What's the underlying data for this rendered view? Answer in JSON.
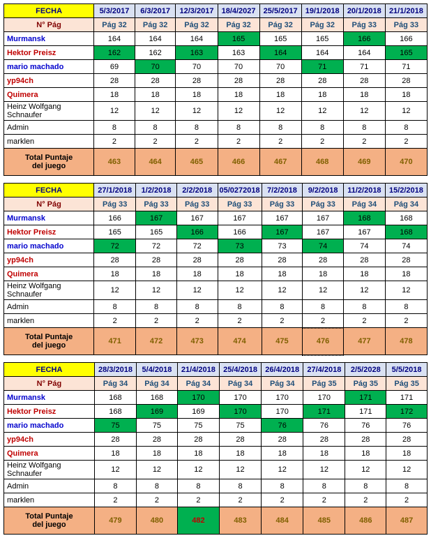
{
  "labels": {
    "fecha": "FECHA",
    "npag": "N° Pág",
    "total1": "Total Puntaje",
    "total2": "del juego"
  },
  "players": [
    {
      "name": "Murmansk",
      "cls": "p-blue"
    },
    {
      "name": "Hektor Preisz",
      "cls": "p-red"
    },
    {
      "name": "mario machado",
      "cls": "p-blue"
    },
    {
      "name": "yp94ch",
      "cls": "p-red"
    },
    {
      "name": "Quimera",
      "cls": "p-red"
    },
    {
      "name": "Heinz Wolfgang Schnaufer",
      "cls": "p-black"
    },
    {
      "name": "Admin",
      "cls": "p-black"
    },
    {
      "name": "marklen",
      "cls": "p-black"
    }
  ],
  "tables": [
    {
      "dates": [
        "5/3/2017",
        "6/3/2017",
        "12/3/2017",
        "18/4/2027",
        "25/5/2017",
        "19/1/2018",
        "20/1/2018",
        "21/1/2018"
      ],
      "pages": [
        "Pág 32",
        "Pág 32",
        "Pág 32",
        "Pág 32",
        "Pág 32",
        "Pág 32",
        "Pág 33",
        "Pág 33"
      ],
      "rows": [
        [
          {
            "v": "164"
          },
          {
            "v": "164"
          },
          {
            "v": "164"
          },
          {
            "v": "165",
            "h": 1
          },
          {
            "v": "165"
          },
          {
            "v": "165"
          },
          {
            "v": "166",
            "h": 1
          },
          {
            "v": "166"
          }
        ],
        [
          {
            "v": "162",
            "h": 1
          },
          {
            "v": "162"
          },
          {
            "v": "163",
            "h": 1
          },
          {
            "v": "163"
          },
          {
            "v": "164",
            "h": 1
          },
          {
            "v": "164"
          },
          {
            "v": "164"
          },
          {
            "v": "165",
            "h": 1
          }
        ],
        [
          {
            "v": "69"
          },
          {
            "v": "70",
            "h": 1
          },
          {
            "v": "70"
          },
          {
            "v": "70"
          },
          {
            "v": "70"
          },
          {
            "v": "71",
            "h": 1
          },
          {
            "v": "71"
          },
          {
            "v": "71"
          }
        ],
        [
          {
            "v": "28"
          },
          {
            "v": "28"
          },
          {
            "v": "28"
          },
          {
            "v": "28"
          },
          {
            "v": "28"
          },
          {
            "v": "28"
          },
          {
            "v": "28"
          },
          {
            "v": "28"
          }
        ],
        [
          {
            "v": "18"
          },
          {
            "v": "18"
          },
          {
            "v": "18"
          },
          {
            "v": "18"
          },
          {
            "v": "18"
          },
          {
            "v": "18"
          },
          {
            "v": "18"
          },
          {
            "v": "18"
          }
        ],
        [
          {
            "v": "12"
          },
          {
            "v": "12"
          },
          {
            "v": "12"
          },
          {
            "v": "12"
          },
          {
            "v": "12"
          },
          {
            "v": "12"
          },
          {
            "v": "12"
          },
          {
            "v": "12"
          }
        ],
        [
          {
            "v": "8"
          },
          {
            "v": "8"
          },
          {
            "v": "8"
          },
          {
            "v": "8"
          },
          {
            "v": "8"
          },
          {
            "v": "8"
          },
          {
            "v": "8"
          },
          {
            "v": "8"
          }
        ],
        [
          {
            "v": "2"
          },
          {
            "v": "2"
          },
          {
            "v": "2"
          },
          {
            "v": "2"
          },
          {
            "v": "2"
          },
          {
            "v": "2"
          },
          {
            "v": "2"
          },
          {
            "v": "2"
          }
        ]
      ],
      "totals": [
        "463",
        "464",
        "465",
        "466",
        "467",
        "468",
        "469",
        "470"
      ]
    },
    {
      "dates": [
        "27/1/2018",
        "1/2/2018",
        "2/2/2018",
        "05/0272018",
        "7/2/2018",
        "9/2/2018",
        "11/2/2018",
        "15/2/2018"
      ],
      "pages": [
        "Pág 33",
        "Pág 33",
        "Pág 33",
        "Pág 33",
        "Pág 33",
        "Pág 33",
        "Pág 34",
        "Pág 34"
      ],
      "rows": [
        [
          {
            "v": "166"
          },
          {
            "v": "167",
            "h": 1
          },
          {
            "v": "167"
          },
          {
            "v": "167"
          },
          {
            "v": "167"
          },
          {
            "v": "167"
          },
          {
            "v": "168",
            "h": 1
          },
          {
            "v": "168"
          }
        ],
        [
          {
            "v": "165"
          },
          {
            "v": "165"
          },
          {
            "v": "166",
            "h": 1
          },
          {
            "v": "166"
          },
          {
            "v": "167",
            "h": 1
          },
          {
            "v": "167"
          },
          {
            "v": "167"
          },
          {
            "v": "168",
            "h": 1
          }
        ],
        [
          {
            "v": "72",
            "h": 1
          },
          {
            "v": "72"
          },
          {
            "v": "72"
          },
          {
            "v": "73",
            "h": 1
          },
          {
            "v": "73"
          },
          {
            "v": "74",
            "h": 1
          },
          {
            "v": "74"
          },
          {
            "v": "74"
          }
        ],
        [
          {
            "v": "28"
          },
          {
            "v": "28"
          },
          {
            "v": "28"
          },
          {
            "v": "28"
          },
          {
            "v": "28"
          },
          {
            "v": "28"
          },
          {
            "v": "28"
          },
          {
            "v": "28"
          }
        ],
        [
          {
            "v": "18"
          },
          {
            "v": "18"
          },
          {
            "v": "18"
          },
          {
            "v": "18"
          },
          {
            "v": "18"
          },
          {
            "v": "18"
          },
          {
            "v": "18"
          },
          {
            "v": "18"
          }
        ],
        [
          {
            "v": "12"
          },
          {
            "v": "12"
          },
          {
            "v": "12"
          },
          {
            "v": "12"
          },
          {
            "v": "12"
          },
          {
            "v": "12"
          },
          {
            "v": "12"
          },
          {
            "v": "12"
          }
        ],
        [
          {
            "v": "8"
          },
          {
            "v": "8"
          },
          {
            "v": "8"
          },
          {
            "v": "8"
          },
          {
            "v": "8"
          },
          {
            "v": "8"
          },
          {
            "v": "8"
          },
          {
            "v": "8"
          }
        ],
        [
          {
            "v": "2"
          },
          {
            "v": "2"
          },
          {
            "v": "2"
          },
          {
            "v": "2"
          },
          {
            "v": "2"
          },
          {
            "v": "2",
            "sel": 1
          },
          {
            "v": "2"
          },
          {
            "v": "2"
          }
        ]
      ],
      "totals": [
        "471",
        "472",
        "473",
        "474",
        "475",
        "476",
        "477",
        "478"
      ],
      "totalSel": 5
    },
    {
      "dates": [
        "28/3/2018",
        "5/4/2018",
        "21/4/2018",
        "25/4/2018",
        "26/4/2018",
        "27/4/2018",
        "2/5/2028",
        "5/5/2018"
      ],
      "pages": [
        "Pág 34",
        "Pág 34",
        "Pág 34",
        "Pág 34",
        "Pág 34",
        "Pág 35",
        "Pág 35",
        "Pág 35"
      ],
      "rows": [
        [
          {
            "v": "168"
          },
          {
            "v": "168"
          },
          {
            "v": "170",
            "h": 1
          },
          {
            "v": "170"
          },
          {
            "v": "170"
          },
          {
            "v": "170"
          },
          {
            "v": "171",
            "h": 1
          },
          {
            "v": "171"
          }
        ],
        [
          {
            "v": "168"
          },
          {
            "v": "169",
            "h": 1
          },
          {
            "v": "169"
          },
          {
            "v": "170",
            "h": 1
          },
          {
            "v": "170"
          },
          {
            "v": "171",
            "h": 1
          },
          {
            "v": "171"
          },
          {
            "v": "172",
            "h": 1
          }
        ],
        [
          {
            "v": "75",
            "h": 1
          },
          {
            "v": "75"
          },
          {
            "v": "75"
          },
          {
            "v": "75"
          },
          {
            "v": "76",
            "h": 1
          },
          {
            "v": "76"
          },
          {
            "v": "76"
          },
          {
            "v": "76"
          }
        ],
        [
          {
            "v": "28"
          },
          {
            "v": "28"
          },
          {
            "v": "28"
          },
          {
            "v": "28"
          },
          {
            "v": "28"
          },
          {
            "v": "28"
          },
          {
            "v": "28"
          },
          {
            "v": "28"
          }
        ],
        [
          {
            "v": "18"
          },
          {
            "v": "18"
          },
          {
            "v": "18"
          },
          {
            "v": "18"
          },
          {
            "v": "18"
          },
          {
            "v": "18"
          },
          {
            "v": "18"
          },
          {
            "v": "18"
          }
        ],
        [
          {
            "v": "12"
          },
          {
            "v": "12"
          },
          {
            "v": "12"
          },
          {
            "v": "12"
          },
          {
            "v": "12"
          },
          {
            "v": "12"
          },
          {
            "v": "12"
          },
          {
            "v": "12"
          }
        ],
        [
          {
            "v": "8"
          },
          {
            "v": "8"
          },
          {
            "v": "8"
          },
          {
            "v": "8"
          },
          {
            "v": "8"
          },
          {
            "v": "8"
          },
          {
            "v": "8"
          },
          {
            "v": "8"
          }
        ],
        [
          {
            "v": "2"
          },
          {
            "v": "2"
          },
          {
            "v": "2"
          },
          {
            "v": "2"
          },
          {
            "v": "2"
          },
          {
            "v": "2"
          },
          {
            "v": "2"
          },
          {
            "v": "2"
          }
        ]
      ],
      "totals": [
        "479",
        "480",
        "482",
        "483",
        "484",
        "485",
        "486",
        "487"
      ],
      "totalHi": 2
    }
  ]
}
